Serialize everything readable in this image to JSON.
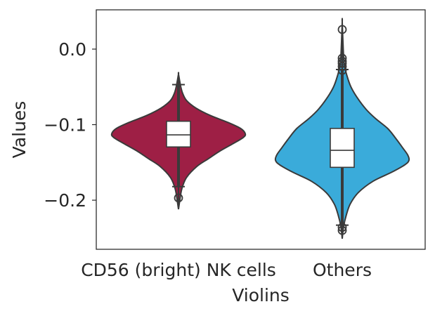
{
  "chart_data": {
    "type": "violin",
    "title": "",
    "xlabel": "Violins",
    "ylabel": "Values",
    "ylim": [
      -0.265,
      0.052
    ],
    "yticks": [
      {
        "value": 0.0,
        "label": "0.0"
      },
      {
        "value": -0.1,
        "label": "−0.1"
      },
      {
        "value": -0.2,
        "label": "−0.2"
      }
    ],
    "categories": [
      "CD56 (bright) NK cells",
      "Others"
    ],
    "grid": false,
    "series": [
      {
        "category": "CD56 (bright) NK cells",
        "color": "#9E1F45",
        "kde_extent": [
          -0.212,
          -0.033
        ],
        "density_profile": [
          [
            -0.212,
            0.0
          ],
          [
            -0.2,
            0.02
          ],
          [
            -0.185,
            0.05
          ],
          [
            -0.17,
            0.12
          ],
          [
            -0.155,
            0.28
          ],
          [
            -0.145,
            0.45
          ],
          [
            -0.135,
            0.62
          ],
          [
            -0.125,
            0.82
          ],
          [
            -0.117,
            0.97
          ],
          [
            -0.112,
            1.0
          ],
          [
            -0.105,
            0.93
          ],
          [
            -0.097,
            0.74
          ],
          [
            -0.088,
            0.48
          ],
          [
            -0.078,
            0.26
          ],
          [
            -0.068,
            0.12
          ],
          [
            -0.058,
            0.06
          ],
          [
            -0.048,
            0.03
          ],
          [
            -0.033,
            0.0
          ]
        ],
        "box": {
          "q1": -0.1295,
          "median": -0.1135,
          "q3": -0.0955,
          "whisker_low": -0.182,
          "whisker_high": -0.047
        },
        "outliers": [
          -0.197
        ]
      },
      {
        "category": "Others",
        "color": "#3AABDA",
        "kde_extent": [
          -0.251,
          0.036
        ],
        "density_profile": [
          [
            -0.251,
            0.0
          ],
          [
            -0.235,
            0.02
          ],
          [
            -0.22,
            0.06
          ],
          [
            -0.205,
            0.12
          ],
          [
            -0.19,
            0.24
          ],
          [
            -0.175,
            0.46
          ],
          [
            -0.163,
            0.74
          ],
          [
            -0.153,
            0.94
          ],
          [
            -0.147,
            1.0
          ],
          [
            -0.14,
            0.98
          ],
          [
            -0.13,
            0.9
          ],
          [
            -0.118,
            0.8
          ],
          [
            -0.105,
            0.68
          ],
          [
            -0.092,
            0.5
          ],
          [
            -0.08,
            0.36
          ],
          [
            -0.065,
            0.23
          ],
          [
            -0.05,
            0.13
          ],
          [
            -0.035,
            0.07
          ],
          [
            -0.02,
            0.03
          ],
          [
            0.0,
            0.015
          ],
          [
            0.036,
            0.0
          ]
        ],
        "box": {
          "q1": -0.1565,
          "median": -0.134,
          "q3": -0.105,
          "whisker_low": -0.233,
          "whisker_high": -0.027
        },
        "outliers": [
          0.026,
          -0.012,
          -0.016,
          -0.019,
          -0.023,
          -0.028,
          -0.236,
          -0.24
        ]
      }
    ]
  }
}
